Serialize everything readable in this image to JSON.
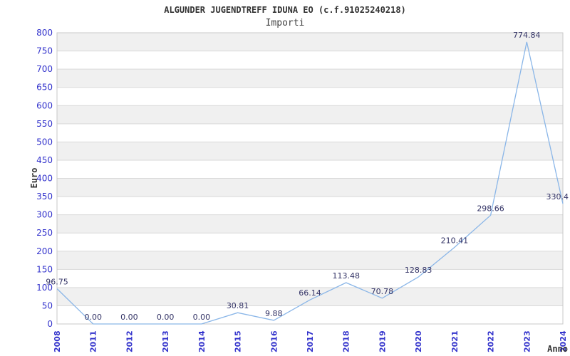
{
  "header": {
    "title": "ALGUNDER JUGENDTREFF IDUNA EO (c.f.91025240218)",
    "subtitle": "Importi"
  },
  "chart_data": {
    "type": "line",
    "title": "ALGUNDER JUGENDTREFF IDUNA EO (c.f.91025240218)",
    "subtitle": "Importi",
    "xlabel": "Anno",
    "ylabel": "Euro",
    "categories": [
      "2008",
      "2011",
      "2012",
      "2013",
      "2014",
      "2015",
      "2016",
      "2017",
      "2018",
      "2019",
      "2020",
      "2021",
      "2022",
      "2023",
      "2024"
    ],
    "values": [
      96.75,
      0.0,
      0.0,
      0.0,
      0.0,
      30.81,
      9.88,
      66.14,
      113.48,
      70.78,
      128.83,
      210.41,
      298.66,
      774.84,
      330.4
    ],
    "point_labels": [
      "96.75",
      "0.00",
      "0.00",
      "0.00",
      "0.00",
      "30.81",
      "9.88",
      "66.14",
      "113.48",
      "70.78",
      "128.83",
      "210.41",
      "298.66",
      "774.84",
      "330.4"
    ],
    "ylim": [
      0,
      800
    ],
    "yticks": [
      0,
      50,
      100,
      150,
      200,
      250,
      300,
      350,
      400,
      450,
      500,
      550,
      600,
      650,
      700,
      750,
      800
    ],
    "grid": true,
    "legend": "none",
    "band_fill_alternating": true,
    "colors": {
      "line": "#8ab6e8",
      "band": "#f0f0f0",
      "grid": "#d9d9d9",
      "border": "#c9c9c9",
      "ytick_label": "#3333cc",
      "xtick_label": "#3333cc",
      "point_label": "#333366",
      "axis_title": "#333333"
    }
  }
}
